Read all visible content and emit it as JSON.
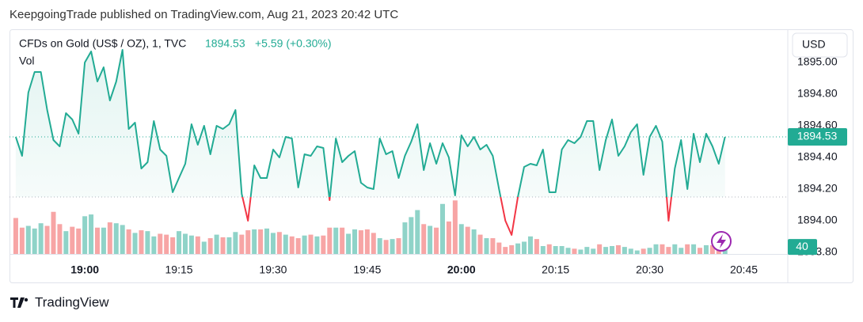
{
  "header": "KeepgoingTrade published on TradingView.com, Aug 21, 2023 20:42 UTC",
  "footer": "TradingView",
  "chart_data": {
    "type": "line",
    "title": "CFDs on Gold (US$ / OZ), 1, TVC",
    "last_price": 1894.53,
    "change": "+5.59 (+0.30%)",
    "currency": "USD",
    "color": "#22ab94",
    "below_color": "#f23645",
    "baseline": 1894.15,
    "x": [
      "18:49",
      "18:50",
      "18:51",
      "18:52",
      "18:53",
      "18:54",
      "18:55",
      "18:56",
      "18:57",
      "18:58",
      "18:59",
      "19:00",
      "19:01",
      "19:02",
      "19:03",
      "19:04",
      "19:05",
      "19:06",
      "19:07",
      "19:08",
      "19:09",
      "19:10",
      "19:11",
      "19:12",
      "19:13",
      "19:14",
      "19:15",
      "19:16",
      "19:17",
      "19:18",
      "19:19",
      "19:20",
      "19:21",
      "19:22",
      "19:23",
      "19:24",
      "19:25",
      "19:26",
      "19:27",
      "19:28",
      "19:29",
      "19:30",
      "19:31",
      "19:32",
      "19:33",
      "19:34",
      "19:35",
      "19:36",
      "19:37",
      "19:38",
      "19:39",
      "19:40",
      "19:41",
      "19:42",
      "19:43",
      "19:44",
      "19:45",
      "19:46",
      "19:47",
      "19:48",
      "19:49",
      "19:50",
      "19:51",
      "19:52",
      "19:53",
      "19:54",
      "19:55",
      "19:56",
      "19:57",
      "19:58",
      "19:59",
      "20:00",
      "20:01",
      "20:02",
      "20:03",
      "20:04",
      "20:05",
      "20:06",
      "20:07",
      "20:08",
      "20:09",
      "20:10",
      "20:11",
      "20:12",
      "20:13",
      "20:14",
      "20:15",
      "20:16",
      "20:17",
      "20:18",
      "20:19",
      "20:20",
      "20:21",
      "20:22",
      "20:23",
      "20:24",
      "20:25",
      "20:26",
      "20:27",
      "20:28",
      "20:29",
      "20:30",
      "20:31",
      "20:32",
      "20:33",
      "20:34",
      "20:35",
      "20:36",
      "20:37",
      "20:38",
      "20:39",
      "20:40",
      "20:41",
      "20:42"
    ],
    "values": [
      1894.53,
      1894.41,
      1894.81,
      1894.94,
      1894.94,
      1894.7,
      1894.51,
      1894.47,
      1894.68,
      1894.64,
      1894.55,
      1895.0,
      1895.07,
      1894.88,
      1894.97,
      1894.76,
      1894.88,
      1895.08,
      1894.58,
      1894.62,
      1894.33,
      1894.37,
      1894.63,
      1894.45,
      1894.41,
      1894.18,
      1894.27,
      1894.36,
      1894.61,
      1894.48,
      1894.6,
      1894.42,
      1894.6,
      1894.58,
      1894.61,
      1894.7,
      1894.17,
      1894.0,
      1894.35,
      1894.27,
      1894.27,
      1894.45,
      1894.4,
      1894.53,
      1894.52,
      1894.21,
      1894.42,
      1894.41,
      1894.47,
      1894.46,
      1894.13,
      1894.52,
      1894.37,
      1894.41,
      1894.44,
      1894.24,
      1894.21,
      1894.2,
      1894.52,
      1894.42,
      1894.44,
      1894.27,
      1894.41,
      1894.5,
      1894.61,
      1894.32,
      1894.49,
      1894.36,
      1894.49,
      1894.4,
      1894.16,
      1894.54,
      1894.47,
      1894.53,
      1894.45,
      1894.48,
      1894.41,
      1894.2,
      1894.0,
      1893.91,
      1894.15,
      1894.34,
      1894.36,
      1894.35,
      1894.45,
      1894.18,
      1894.18,
      1894.45,
      1894.51,
      1894.49,
      1894.53,
      1894.63,
      1894.63,
      1894.32,
      1894.51,
      1894.64,
      1894.41,
      1894.47,
      1894.56,
      1894.61,
      1894.29,
      1894.53,
      1894.6,
      1894.5,
      1894.0,
      1894.33,
      1894.51,
      1894.2,
      1894.55,
      1894.37,
      1894.55,
      1894.47,
      1894.36,
      1894.53
    ],
    "xlim": [
      "18:48",
      "20:52"
    ],
    "xticks": [
      "19:00",
      "19:15",
      "19:30",
      "19:45",
      "20:00",
      "20:15",
      "20:30",
      "20:45"
    ],
    "ylim": [
      1893.79,
      1895.21
    ],
    "yticks": [
      {
        "value": 1893.8,
        "label": "1893.80"
      },
      {
        "value": 1894,
        "label": "1894.00"
      },
      {
        "value": 1894.2,
        "label": "1894.20"
      },
      {
        "value": 1894.4,
        "label": "1894.40"
      },
      {
        "value": 1894.6,
        "label": "1894.60"
      },
      {
        "value": 1894.8,
        "label": "1894.80"
      },
      {
        "value": 1895,
        "label": "1895.00"
      }
    ],
    "volume": {
      "name": "Vol",
      "up_color": "#8fd3c8",
      "down_color": "#f7a5a5",
      "ylim": [
        0,
        1280
      ],
      "values": [
        205,
        150,
        160,
        145,
        175,
        160,
        240,
        170,
        130,
        155,
        145,
        215,
        225,
        150,
        150,
        180,
        175,
        165,
        140,
        120,
        135,
        130,
        100,
        115,
        110,
        95,
        130,
        115,
        105,
        100,
        70,
        90,
        110,
        95,
        95,
        125,
        110,
        135,
        140,
        140,
        145,
        120,
        125,
        110,
        100,
        90,
        105,
        110,
        100,
        105,
        150,
        150,
        150,
        115,
        140,
        135,
        140,
        120,
        90,
        80,
        85,
        90,
        180,
        210,
        250,
        170,
        160,
        150,
        285,
        185,
        305,
        170,
        155,
        140,
        110,
        90,
        90,
        65,
        40,
        50,
        60,
        70,
        100,
        85,
        45,
        55,
        45,
        45,
        35,
        30,
        25,
        40,
        30,
        55,
        40,
        45,
        50,
        40,
        30,
        20,
        30,
        35,
        55,
        55,
        40,
        55,
        35,
        55,
        55,
        35,
        50,
        50,
        45,
        40
      ]
    }
  }
}
